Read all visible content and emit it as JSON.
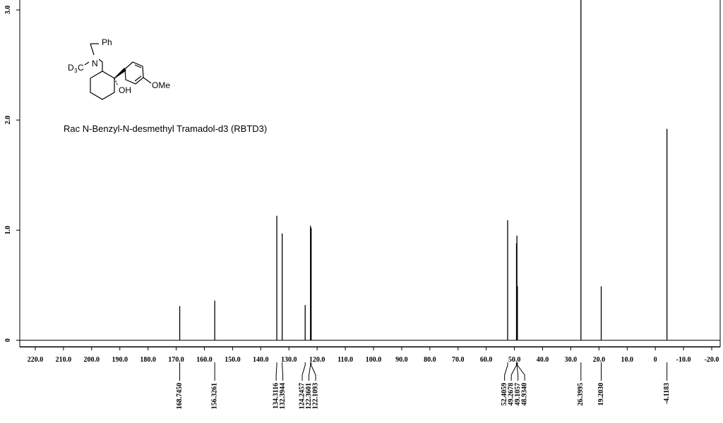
{
  "chart_data": {
    "type": "spectrum",
    "title": "Rac N-Benzyl-N-desmethyl Tramadol-d3 (RBTD3)",
    "x": [
      {
        "value": 168.745,
        "label": "168.7450"
      },
      {
        "value": 156.3261,
        "label": "156.3261"
      },
      {
        "value": 134.3116,
        "label": "134.3116"
      },
      {
        "value": 132.3944,
        "label": "132.3944"
      },
      {
        "value": 124.2457,
        "label": "124.2457"
      },
      {
        "value": 122.3601,
        "label": "122.3601"
      },
      {
        "value": 122.1093,
        "label": "122.1093"
      },
      {
        "value": 52.4059,
        "label": "52.4059"
      },
      {
        "value": 49.2678,
        "label": "49.2678"
      },
      {
        "value": 49.1057,
        "label": "49.1057"
      },
      {
        "value": 48.934,
        "label": "48.9340"
      },
      {
        "value": 26.3995,
        "label": "26.3995"
      },
      {
        "value": 19.203,
        "label": "19.2030"
      },
      {
        "value": -4.1183,
        "label": "-4.1183"
      }
    ],
    "values": [
      0.31,
      0.36,
      1.13,
      0.97,
      0.32,
      1.04,
      1.02,
      1.09,
      0.88,
      0.95,
      0.49,
      3.2,
      0.49,
      1.92
    ],
    "color": "#000000",
    "xlim": [
      225.5,
      -23
    ],
    "xticks": [
      {
        "value": 220,
        "label": "220.0"
      },
      {
        "value": 210,
        "label": "210.0"
      },
      {
        "value": 200,
        "label": "200.0"
      },
      {
        "value": 190,
        "label": "190.0"
      },
      {
        "value": 180,
        "label": "180.0"
      },
      {
        "value": 170,
        "label": "170.0"
      },
      {
        "value": 160,
        "label": "160.0"
      },
      {
        "value": 150,
        "label": "150.0"
      },
      {
        "value": 140,
        "label": "140.0"
      },
      {
        "value": 130,
        "label": "130.0"
      },
      {
        "value": 120,
        "label": "120.0"
      },
      {
        "value": 110,
        "label": "110.0"
      },
      {
        "value": 100,
        "label": "100.0"
      },
      {
        "value": 90,
        "label": "90.0"
      },
      {
        "value": 80,
        "label": "80.0"
      },
      {
        "value": 70,
        "label": "70.0"
      },
      {
        "value": 60,
        "label": "60.0"
      },
      {
        "value": 50,
        "label": "50.0"
      },
      {
        "value": 40,
        "label": "40.0"
      },
      {
        "value": 30,
        "label": "30.0"
      },
      {
        "value": 20,
        "label": "20.0"
      },
      {
        "value": 10,
        "label": "10.0"
      },
      0,
      {
        "value": -10,
        "label": "-10.0"
      },
      {
        "value": -20,
        "label": "-20.0"
      }
    ],
    "ylim": [
      -0.06,
      3.09
    ],
    "yticks": [
      0,
      {
        "value": 1,
        "label": "1.0"
      },
      {
        "value": 2,
        "label": "2.0"
      },
      {
        "value": 3,
        "label": "3.0"
      }
    ]
  },
  "structure": {
    "labels": [
      "Ph",
      "N",
      "D",
      "3",
      "C",
      "OH",
      "OMe"
    ]
  }
}
